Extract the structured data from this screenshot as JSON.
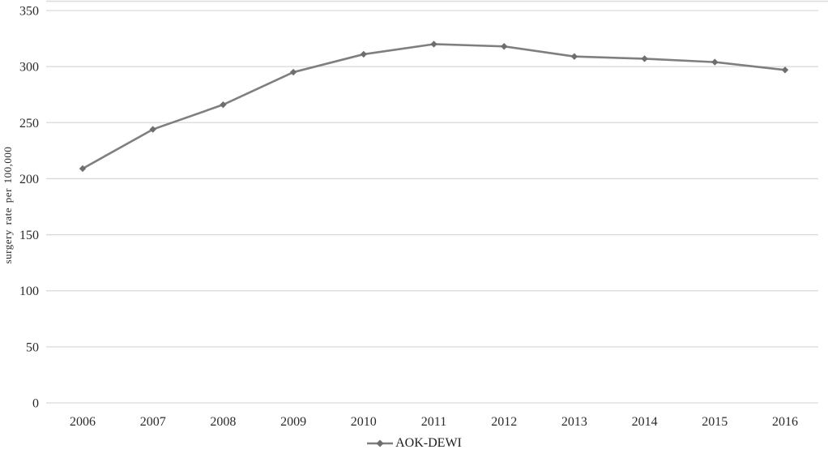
{
  "chart_data": {
    "type": "line",
    "title": "",
    "xlabel": "",
    "ylabel": "surgery rate per 100,000",
    "categories": [
      "2006",
      "2007",
      "2008",
      "2009",
      "2010",
      "2011",
      "2012",
      "2013",
      "2014",
      "2015",
      "2016"
    ],
    "series": [
      {
        "name": "AOK-DEWI",
        "values": [
          209,
          244,
          266,
          295,
          311,
          320,
          318,
          309,
          307,
          304,
          297
        ],
        "marker": "diamond"
      }
    ],
    "ylim": [
      0,
      350
    ],
    "yticks": [
      0,
      50,
      100,
      150,
      200,
      250,
      300,
      350
    ],
    "grid": true,
    "legend_position": "bottom-center"
  },
  "legend": {
    "label": "AOK-DEWI"
  },
  "colors": {
    "line": "#7f7f7f",
    "marker": "#6e6e6e",
    "gridline": "#d9d9d9",
    "top_border": "#bfbfbf",
    "tick_text": "#2b2b2b"
  }
}
